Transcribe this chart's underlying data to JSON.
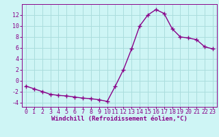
{
  "x": [
    0,
    1,
    2,
    3,
    4,
    5,
    6,
    7,
    8,
    9,
    10,
    11,
    12,
    13,
    14,
    15,
    16,
    17,
    18,
    19,
    20,
    21,
    22,
    23
  ],
  "y": [
    -1,
    -1.5,
    -2,
    -2.5,
    -2.7,
    -2.8,
    -3.0,
    -3.2,
    -3.3,
    -3.5,
    -3.8,
    -1.0,
    2.0,
    5.8,
    10.0,
    12.0,
    13.0,
    12.3,
    9.5,
    8.0,
    7.8,
    7.5,
    6.2,
    5.8
  ],
  "line_color": "#880088",
  "marker": "+",
  "marker_size": 4,
  "linewidth": 1.0,
  "bg_color": "#cef5f5",
  "grid_color": "#aadddd",
  "xlabel": "Windchill (Refroidissement éolien,°C)",
  "xlabel_fontsize": 6.5,
  "yticks": [
    -4,
    -2,
    0,
    2,
    4,
    6,
    8,
    10,
    12
  ],
  "xlim": [
    -0.5,
    23.5
  ],
  "ylim": [
    -4.8,
    14.0
  ],
  "tick_fontsize": 6.0,
  "title_color": "#880088"
}
